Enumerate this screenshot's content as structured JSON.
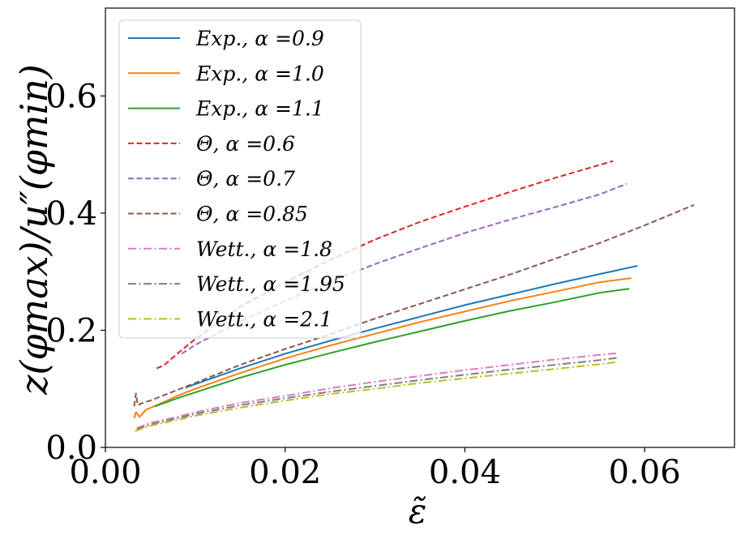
{
  "chart_data": {
    "type": "line",
    "title": "",
    "xlabel": "ε̃",
    "ylabel": "z(φmax)/u″(φmin)",
    "xlim": [
      0.0,
      0.07
    ],
    "ylim": [
      0.0,
      0.75
    ],
    "x_ticks": [
      0.0,
      0.02,
      0.04,
      0.06
    ],
    "x_tick_labels": [
      "0.00",
      "0.02",
      "0.04",
      "0.06"
    ],
    "y_ticks": [
      0.0,
      0.2,
      0.4,
      0.6
    ],
    "y_tick_labels": [
      "0.0",
      "0.2",
      "0.4",
      "0.6"
    ],
    "grid": false,
    "legend_position": "top-left",
    "series": [
      {
        "name": "Exp., α =0.9",
        "color": "#1f77b4",
        "style": "solid",
        "x": [
          0.0089,
          0.015,
          0.02,
          0.025,
          0.03,
          0.035,
          0.04,
          0.045,
          0.05,
          0.055,
          0.0592
        ],
        "y": [
          0.102,
          0.135,
          0.16,
          0.182,
          0.203,
          0.223,
          0.243,
          0.261,
          0.279,
          0.296,
          0.31
        ]
      },
      {
        "name": "Exp., α =1.0",
        "color": "#ff7f0e",
        "style": "solid",
        "x": [
          0.0032,
          0.0034,
          0.0038,
          0.0045,
          0.006,
          0.008,
          0.01,
          0.015,
          0.02,
          0.025,
          0.03,
          0.035,
          0.04,
          0.045,
          0.05,
          0.055,
          0.0585
        ],
        "y": [
          0.05,
          0.06,
          0.052,
          0.064,
          0.074,
          0.088,
          0.1,
          0.127,
          0.152,
          0.174,
          0.194,
          0.214,
          0.232,
          0.25,
          0.266,
          0.282,
          0.289
        ]
      },
      {
        "name": "Exp., α =1.1",
        "color": "#2ca02c",
        "style": "solid",
        "x": [
          0.0055,
          0.008,
          0.01,
          0.015,
          0.02,
          0.025,
          0.03,
          0.035,
          0.04,
          0.045,
          0.05,
          0.055,
          0.0583
        ],
        "y": [
          0.07,
          0.084,
          0.094,
          0.119,
          0.141,
          0.161,
          0.18,
          0.198,
          0.216,
          0.233,
          0.248,
          0.264,
          0.271
        ]
      },
      {
        "name": "Θ, α =0.6",
        "color": "#d62728",
        "style": "dashed",
        "x": [
          0.0057,
          0.0065,
          0.008,
          0.01,
          0.015,
          0.02,
          0.025,
          0.03,
          0.035,
          0.04,
          0.045,
          0.05,
          0.0565
        ],
        "y": [
          0.135,
          0.14,
          0.16,
          0.185,
          0.24,
          0.282,
          0.32,
          0.355,
          0.385,
          0.411,
          0.436,
          0.46,
          0.489
        ]
      },
      {
        "name": "Θ, α =0.7",
        "color": "#9467bd",
        "style": "dashed",
        "x": [
          0.0085,
          0.01,
          0.015,
          0.02,
          0.025,
          0.03,
          0.035,
          0.04,
          0.045,
          0.05,
          0.055,
          0.058
        ],
        "y": [
          0.16,
          0.175,
          0.215,
          0.25,
          0.283,
          0.313,
          0.34,
          0.366,
          0.389,
          0.41,
          0.432,
          0.45
        ]
      },
      {
        "name": "Θ, α =0.85",
        "color": "#8c564b",
        "style": "dashed",
        "x": [
          0.0032,
          0.0034,
          0.0036,
          0.004,
          0.005,
          0.007,
          0.01,
          0.015,
          0.02,
          0.025,
          0.03,
          0.035,
          0.04,
          0.045,
          0.05,
          0.055,
          0.06,
          0.0655
        ],
        "y": [
          0.07,
          0.092,
          0.072,
          0.075,
          0.08,
          0.092,
          0.11,
          0.141,
          0.168,
          0.193,
          0.22,
          0.245,
          0.27,
          0.295,
          0.322,
          0.349,
          0.379,
          0.414
        ]
      },
      {
        "name": "Wett., α =1.8",
        "color": "#e377c2",
        "style": "dashdot",
        "x": [
          0.0035,
          0.005,
          0.008,
          0.01,
          0.015,
          0.02,
          0.025,
          0.03,
          0.035,
          0.04,
          0.045,
          0.05,
          0.055,
          0.057
        ],
        "y": [
          0.033,
          0.042,
          0.052,
          0.06,
          0.076,
          0.088,
          0.101,
          0.112,
          0.122,
          0.132,
          0.141,
          0.15,
          0.158,
          0.161
        ]
      },
      {
        "name": "Wett., α =1.95",
        "color": "#7f7f7f",
        "style": "dashdot",
        "x": [
          0.0035,
          0.005,
          0.008,
          0.01,
          0.015,
          0.02,
          0.025,
          0.03,
          0.035,
          0.04,
          0.045,
          0.05,
          0.055,
          0.057
        ],
        "y": [
          0.031,
          0.039,
          0.05,
          0.057,
          0.072,
          0.084,
          0.095,
          0.105,
          0.115,
          0.124,
          0.133,
          0.141,
          0.149,
          0.153
        ]
      },
      {
        "name": "Wett., α =2.1",
        "color": "#bcbd22",
        "style": "dashdot",
        "x": [
          0.0033,
          0.005,
          0.008,
          0.01,
          0.015,
          0.02,
          0.025,
          0.03,
          0.035,
          0.04,
          0.045,
          0.05,
          0.055,
          0.057
        ],
        "y": [
          0.028,
          0.037,
          0.047,
          0.054,
          0.068,
          0.08,
          0.091,
          0.1,
          0.11,
          0.118,
          0.126,
          0.134,
          0.142,
          0.146
        ]
      }
    ]
  }
}
